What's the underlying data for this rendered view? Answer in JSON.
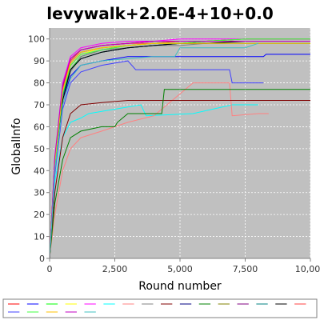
{
  "chart_data": {
    "type": "line",
    "title": "levywalk+2.0E-4+10+0.0",
    "xlabel": "Round number",
    "ylabel": "GlobalInfo",
    "xlim": [
      0,
      10000
    ],
    "ylim": [
      0,
      105
    ],
    "xticks": [
      0,
      2500,
      5000,
      7500,
      10000
    ],
    "xtick_labels": [
      "0",
      "2,500",
      "5,000",
      "7,500",
      "10,000"
    ],
    "yticks": [
      0,
      10,
      20,
      30,
      40,
      50,
      60,
      70,
      80,
      90,
      100
    ],
    "ytick_labels": [
      "0",
      "10",
      "20",
      "30",
      "40",
      "50",
      "60",
      "70",
      "80",
      "90",
      "100"
    ],
    "grid": true,
    "plot_background": "#c0c0c0",
    "legend_position": "bottom",
    "series": [
      {
        "color": "#ff0000",
        "x": [
          0,
          200,
          500,
          800,
          1200,
          2000,
          3000,
          4000,
          5000,
          6000,
          7500,
          10000
        ],
        "y": [
          0,
          45,
          78,
          90,
          95,
          97,
          98,
          99,
          99,
          99,
          100,
          100
        ]
      },
      {
        "color": "#0000ff",
        "x": [
          0,
          200,
          500,
          800,
          1200,
          2000,
          3000,
          4000,
          5500,
          7000,
          8200,
          8300,
          9500,
          10000
        ],
        "y": [
          0,
          40,
          72,
          83,
          88,
          90,
          92,
          92,
          92,
          92,
          92,
          93,
          93,
          93
        ]
      },
      {
        "color": "#00ff00",
        "x": [
          0,
          200,
          500,
          800,
          1200,
          2000,
          3000,
          4000,
          5000,
          6000,
          7500,
          10000
        ],
        "y": [
          0,
          42,
          75,
          86,
          92,
          95,
          97,
          98,
          99,
          99,
          100,
          100
        ]
      },
      {
        "color": "#ffff00",
        "x": [
          0,
          200,
          500,
          800,
          1200,
          2000,
          3000,
          4000,
          5000,
          6000,
          7500,
          10000
        ],
        "y": [
          0,
          44,
          76,
          88,
          93,
          96,
          97,
          98,
          98,
          98,
          98,
          98
        ]
      },
      {
        "color": "#ff00ff",
        "x": [
          0,
          200,
          500,
          800,
          1200,
          2000,
          3000,
          4000,
          5000,
          6000,
          7500,
          10000
        ],
        "y": [
          0,
          46,
          80,
          92,
          96,
          98,
          99,
          99,
          100,
          100,
          100,
          100
        ]
      },
      {
        "color": "#00ffff",
        "x": [
          0,
          200,
          500,
          800,
          1200,
          1500,
          2500,
          3500,
          3700,
          5500,
          7000,
          8000
        ],
        "y": [
          0,
          35,
          55,
          62,
          64,
          66,
          68,
          70,
          65,
          66,
          70,
          70
        ]
      },
      {
        "color": "#ff8080",
        "x": [
          0,
          200,
          500,
          800,
          1200,
          2000,
          3000,
          4000,
          5500,
          6900,
          7000,
          8000,
          8400
        ],
        "y": [
          0,
          20,
          40,
          50,
          55,
          58,
          62,
          65,
          80,
          80,
          65,
          66,
          66
        ]
      },
      {
        "color": "#808080",
        "x": [
          0,
          200,
          500,
          800,
          1200,
          2000,
          3000,
          4000,
          5000,
          6000,
          7500,
          10000
        ],
        "y": [
          0,
          40,
          72,
          85,
          92,
          95,
          96,
          97,
          97,
          98,
          98,
          98
        ]
      },
      {
        "color": "#800000",
        "x": [
          0,
          200,
          500,
          800,
          1200,
          2000,
          3000,
          4000,
          5000,
          7000,
          10000
        ],
        "y": [
          0,
          30,
          55,
          66,
          70,
          71,
          72,
          72,
          72,
          72,
          72
        ]
      },
      {
        "color": "#000080",
        "x": [
          0,
          200,
          500,
          800,
          1200,
          2000,
          3000,
          4000,
          5000,
          6000,
          7500,
          10000
        ],
        "y": [
          0,
          42,
          74,
          86,
          91,
          94,
          96,
          97,
          98,
          99,
          99,
          99
        ]
      },
      {
        "color": "#008000",
        "x": [
          0,
          200,
          500,
          800,
          1200,
          2000,
          2500,
          2600,
          3000,
          4000,
          4300,
          4400,
          10000
        ],
        "y": [
          0,
          25,
          45,
          55,
          58,
          60,
          60,
          62,
          66,
          66,
          66,
          77,
          77
        ]
      },
      {
        "color": "#808000",
        "x": [
          0,
          200,
          500,
          800,
          1200,
          2000,
          3000,
          4000,
          5000,
          6000,
          7500,
          10000
        ],
        "y": [
          0,
          44,
          77,
          89,
          94,
          96,
          97,
          98,
          99,
          99,
          99,
          99
        ]
      },
      {
        "color": "#800080",
        "x": [
          0,
          200,
          500,
          800,
          1200,
          2000,
          3000,
          4000,
          5000,
          6000,
          7500,
          10000
        ],
        "y": [
          0,
          45,
          78,
          91,
          95,
          97,
          98,
          99,
          99,
          99,
          99,
          99
        ]
      },
      {
        "color": "#008080",
        "x": [
          0,
          200,
          500,
          800,
          1200,
          2000,
          3000,
          4000,
          5000,
          6000,
          7500,
          10000
        ],
        "y": [
          0,
          43,
          74,
          86,
          91,
          94,
          96,
          97,
          98,
          98,
          98,
          98
        ]
      },
      {
        "color": "#000000",
        "x": [
          0,
          200,
          500,
          800,
          1200,
          2000,
          3000,
          4000,
          5000,
          6000,
          7500,
          10000
        ],
        "y": [
          0,
          40,
          72,
          86,
          91,
          94,
          96,
          97,
          98,
          98,
          99,
          99
        ]
      },
      {
        "color": "#ff4040",
        "x": [
          0,
          200,
          500,
          800,
          1200,
          2000,
          3000,
          4000,
          5000,
          6000,
          7500,
          10000
        ],
        "y": [
          0,
          44,
          77,
          90,
          95,
          97,
          98,
          98,
          99,
          99,
          99,
          99
        ]
      },
      {
        "color": "#4040ff",
        "x": [
          0,
          200,
          500,
          800,
          1200,
          2000,
          3000,
          3300,
          4000,
          5000,
          6000,
          6900,
          7000,
          8000,
          8200
        ],
        "y": [
          0,
          38,
          68,
          80,
          85,
          88,
          90,
          86,
          86,
          86,
          86,
          86,
          80,
          80,
          80
        ]
      },
      {
        "color": "#40ff40",
        "x": [
          0,
          200,
          500,
          800,
          1200,
          2000,
          3000,
          4000,
          5000,
          6000,
          7500,
          10000
        ],
        "y": [
          0,
          42,
          75,
          88,
          93,
          95,
          97,
          98,
          98,
          99,
          100,
          100
        ]
      },
      {
        "color": "#ffc000",
        "x": [
          0,
          200,
          500,
          800,
          1200,
          2000,
          3000,
          4000,
          5000,
          6000,
          7500,
          10000
        ],
        "y": [
          0,
          44,
          76,
          89,
          94,
          96,
          97,
          98,
          98,
          98,
          98,
          98
        ]
      },
      {
        "color": "#c000c0",
        "x": [
          0,
          200,
          500,
          800,
          1200,
          2000,
          3000,
          4000,
          5000,
          6000,
          7500,
          10000
        ],
        "y": [
          0,
          46,
          79,
          91,
          95,
          97,
          98,
          99,
          99,
          99,
          99,
          99
        ]
      },
      {
        "color": "#40c0c0",
        "x": [
          0,
          200,
          500,
          800,
          1200,
          2000,
          3000,
          4000,
          4800,
          5000,
          6000,
          7500,
          8000
        ],
        "y": [
          0,
          40,
          70,
          82,
          88,
          90,
          91,
          92,
          92,
          96,
          96,
          96,
          98
        ]
      }
    ]
  }
}
